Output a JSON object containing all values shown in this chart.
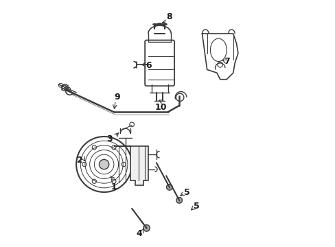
{
  "bg_color": "#ffffff",
  "line_color": "#3a3a3a",
  "label_color": "#1a1a1a",
  "title": "",
  "figsize": [
    4.89,
    3.6
  ],
  "dpi": 100
}
